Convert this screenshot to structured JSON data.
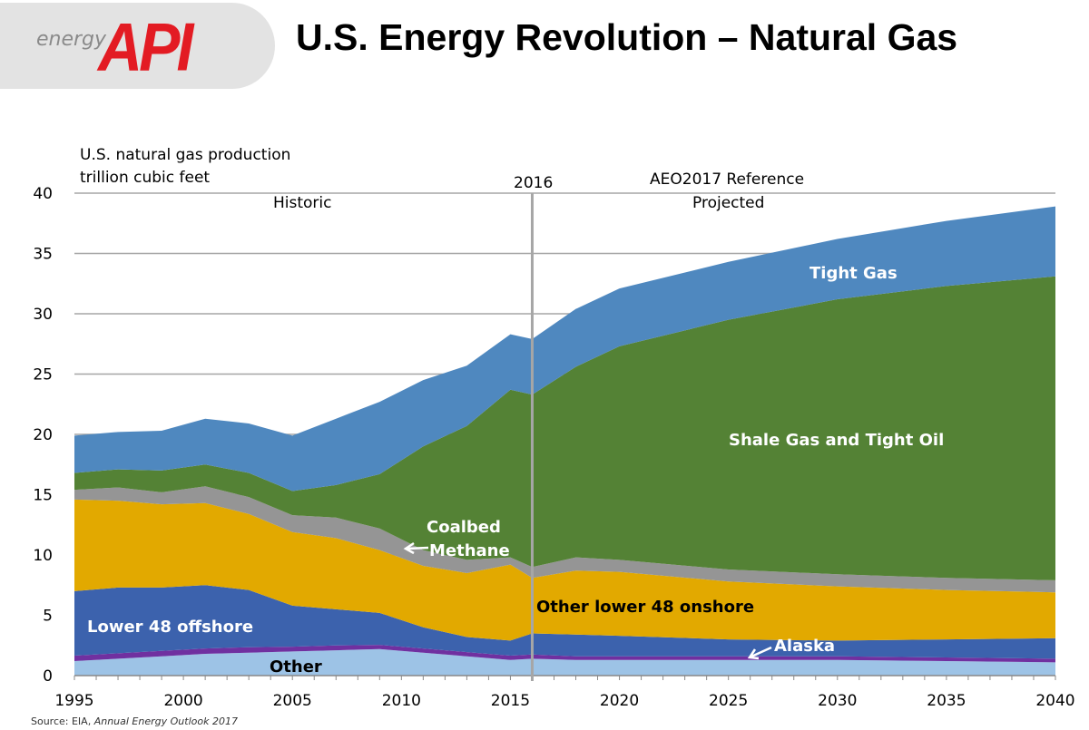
{
  "logo": {
    "text_small": "energy",
    "text_large": "API"
  },
  "title": "U.S. Energy Revolution – Natural Gas",
  "source": {
    "prefix": "Source: EIA, ",
    "publication": "Annual Energy Outlook 2017"
  },
  "chart_data": {
    "type": "area",
    "stacked": true,
    "ylabel_line1": "U.S. natural gas production",
    "ylabel_line2": "trillion cubic feet",
    "ylim": [
      0,
      40
    ],
    "yticks": [
      0,
      5,
      10,
      15,
      20,
      25,
      30,
      35,
      40
    ],
    "xlim": [
      1995,
      2040
    ],
    "xticks": [
      1995,
      2000,
      2005,
      2010,
      2015,
      2020,
      2025,
      2030,
      2035,
      2040
    ],
    "grid": true,
    "annotations": {
      "divider_year": 2016,
      "divider_label": "2016",
      "historic": "Historic",
      "reference": "AEO2017 Reference",
      "projected": "Projected"
    },
    "x": [
      1995,
      1997,
      1999,
      2001,
      2003,
      2005,
      2007,
      2009,
      2011,
      2013,
      2015,
      2016,
      2018,
      2020,
      2025,
      2030,
      2035,
      2040
    ],
    "series": [
      {
        "name": "Other",
        "color": "#9dc3e6",
        "label_color": "#000000",
        "values": [
          1.2,
          1.4,
          1.6,
          1.8,
          1.9,
          2.0,
          2.1,
          2.2,
          1.9,
          1.6,
          1.3,
          1.4,
          1.3,
          1.3,
          1.3,
          1.3,
          1.2,
          1.1
        ]
      },
      {
        "name": "Alaska",
        "color": "#7030a0",
        "label_color": "#ffffff",
        "values": [
          0.45,
          0.45,
          0.45,
          0.45,
          0.45,
          0.4,
          0.4,
          0.35,
          0.35,
          0.35,
          0.35,
          0.35,
          0.3,
          0.3,
          0.3,
          0.3,
          0.3,
          0.3
        ]
      },
      {
        "name": "Lower 48 offshore",
        "color": "#3c62ad",
        "label_color": "#ffffff",
        "values": [
          5.35,
          5.45,
          5.25,
          5.25,
          4.75,
          3.4,
          3.0,
          2.65,
          1.75,
          1.25,
          1.25,
          1.75,
          1.8,
          1.7,
          1.4,
          1.3,
          1.5,
          1.7
        ]
      },
      {
        "name": "Other lower 48 onshore",
        "color": "#e2a900",
        "label_color": "#000000",
        "values": [
          7.6,
          7.2,
          6.9,
          6.8,
          6.3,
          6.1,
          5.9,
          5.2,
          5.1,
          5.3,
          6.3,
          4.6,
          5.3,
          5.3,
          4.8,
          4.5,
          4.1,
          3.8
        ]
      },
      {
        "name": "Coalbed Methane",
        "name_line1": "Coalbed",
        "name_line2": "Methane",
        "color": "#959595",
        "label_color": "#ffffff",
        "values": [
          0.8,
          1.1,
          1.0,
          1.4,
          1.4,
          1.4,
          1.7,
          1.8,
          1.3,
          1.1,
          0.6,
          0.9,
          1.1,
          1.0,
          1.0,
          1.0,
          1.0,
          1.0
        ]
      },
      {
        "name": "Shale Gas and Tight Oil",
        "color": "#548235",
        "label_color": "#ffffff",
        "values": [
          1.4,
          1.5,
          1.8,
          1.8,
          2.0,
          2.0,
          2.7,
          4.5,
          8.6,
          11.1,
          13.9,
          14.3,
          15.8,
          17.7,
          20.7,
          22.8,
          24.2,
          25.2
        ]
      },
      {
        "name": "Tight Gas",
        "color": "#4f88bf",
        "label_color": "#ffffff",
        "values": [
          3.1,
          3.1,
          3.3,
          3.8,
          4.1,
          4.6,
          5.5,
          6.0,
          5.5,
          5.0,
          4.6,
          4.6,
          4.8,
          4.8,
          4.8,
          5.0,
          5.4,
          5.8
        ]
      }
    ]
  }
}
